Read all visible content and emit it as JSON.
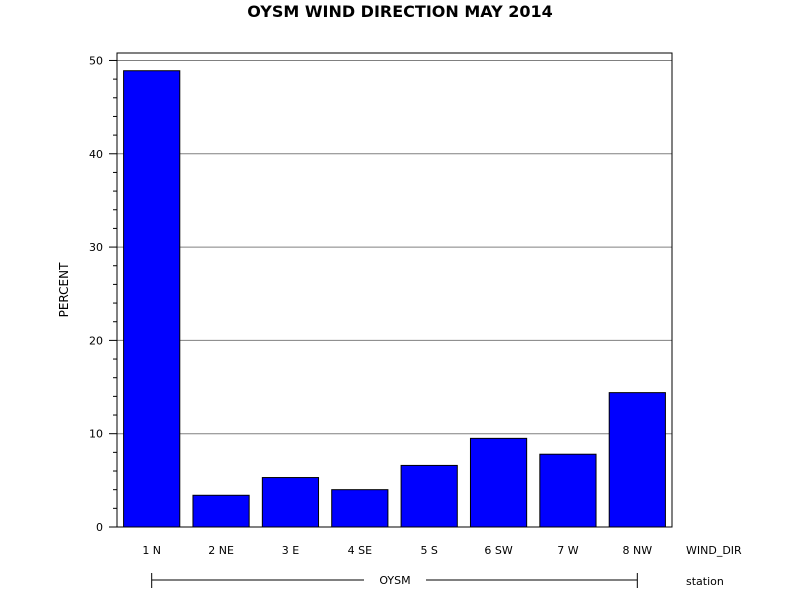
{
  "chart_data": {
    "type": "bar",
    "title": "OYSM WIND DIRECTION MAY 2014",
    "ylabel": "PERCENT",
    "xlabel": "WIND_DIR",
    "group_label": "station",
    "group_name": "OYSM",
    "categories": [
      "1 N",
      "2 NE",
      "3 E",
      "4 SE",
      "5 S",
      "6 SW",
      "7 W",
      "8 NW"
    ],
    "values": [
      48.9,
      3.4,
      5.3,
      4.0,
      6.6,
      9.5,
      7.8,
      14.4
    ],
    "yticks": [
      0,
      10,
      20,
      30,
      40,
      50
    ],
    "ylim": [
      0,
      50.8
    ],
    "grid": true,
    "bar_color": "#0000ff",
    "bar_edge_color": "#000000",
    "grid_color": "#808080"
  }
}
